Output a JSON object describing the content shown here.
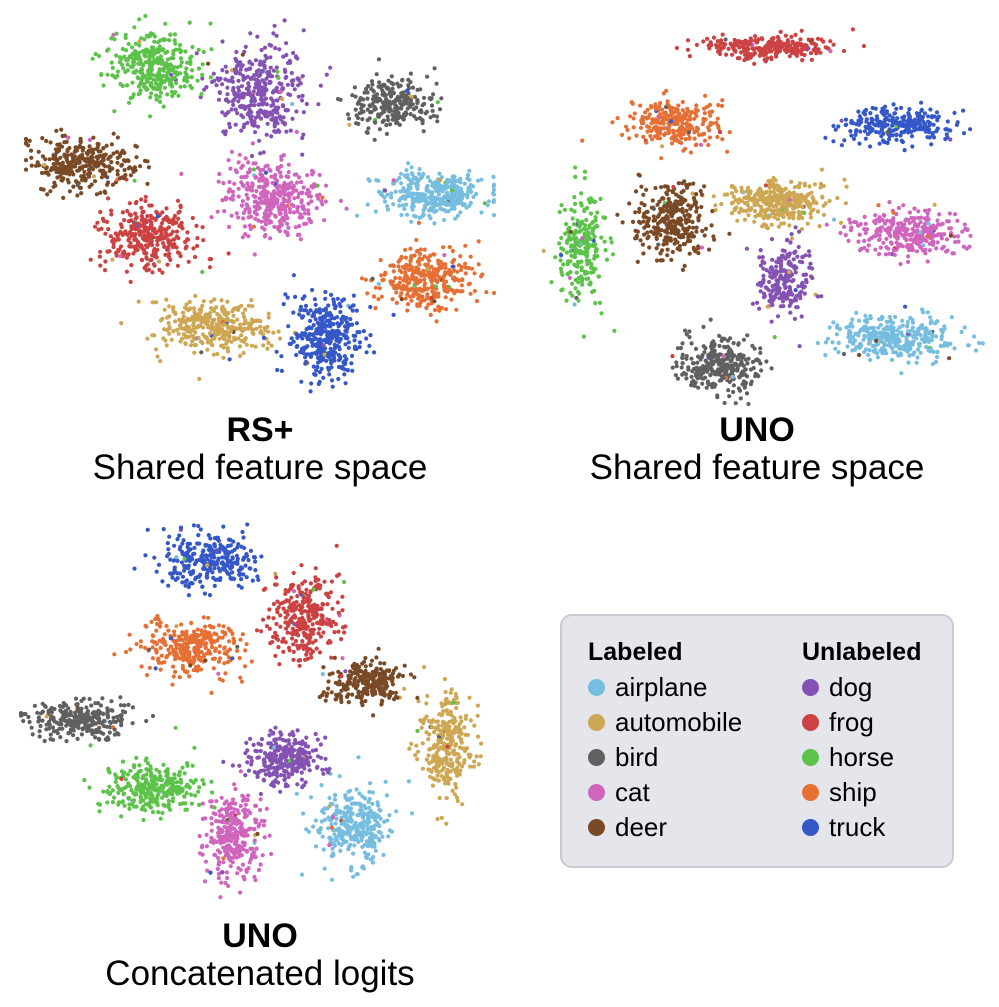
{
  "colors": {
    "airplane": "#76bde0",
    "automobile": "#cda753",
    "bird": "#606060",
    "cat": "#d065bd",
    "deer": "#7a4a26",
    "dog": "#8452b3",
    "frog": "#cc4242",
    "horse": "#5cc24a",
    "ship": "#e57035",
    "truck": "#3558c8"
  },
  "captions": {
    "rs": {
      "method": "RS+",
      "space": "Shared feature space"
    },
    "uno_shared": {
      "method": "UNO",
      "space": "Shared feature space"
    },
    "uno_logits": {
      "method": "UNO",
      "space": "Concatenated logits"
    }
  },
  "legend": {
    "labeled_title": "Labeled",
    "unlabeled_title": "Unlabeled",
    "labeled": [
      {
        "label": "airplane",
        "color": "#76bde0"
      },
      {
        "label": "automobile",
        "color": "#cda753"
      },
      {
        "label": "bird",
        "color": "#606060"
      },
      {
        "label": "cat",
        "color": "#d065bd"
      },
      {
        "label": "deer",
        "color": "#7a4a26"
      }
    ],
    "unlabeled": [
      {
        "label": "dog",
        "color": "#8452b3"
      },
      {
        "label": "frog",
        "color": "#cc4242"
      },
      {
        "label": "horse",
        "color": "#5cc24a"
      },
      {
        "label": "ship",
        "color": "#e57035"
      },
      {
        "label": "truck",
        "color": "#3558c8"
      }
    ]
  },
  "chart_data": [
    {
      "type": "scatter",
      "title": "RS+",
      "subtitle": "Shared feature space",
      "series": [
        {
          "name": "airplane",
          "center": [
            0.87,
            0.46
          ],
          "spread": [
            0.11,
            0.055
          ],
          "points": 360
        },
        {
          "name": "automobile",
          "center": [
            0.4,
            0.8
          ],
          "spread": [
            0.12,
            0.065
          ],
          "points": 340
        },
        {
          "name": "bird",
          "center": [
            0.78,
            0.23
          ],
          "spread": [
            0.09,
            0.07
          ],
          "points": 260
        },
        {
          "name": "cat",
          "center": [
            0.53,
            0.47
          ],
          "spread": [
            0.1,
            0.1
          ],
          "points": 380
        },
        {
          "name": "deer",
          "center": [
            0.12,
            0.38
          ],
          "spread": [
            0.12,
            0.07
          ],
          "points": 320
        },
        {
          "name": "dog",
          "center": [
            0.5,
            0.2
          ],
          "spread": [
            0.1,
            0.12
          ],
          "points": 380
        },
        {
          "name": "frog",
          "center": [
            0.26,
            0.57
          ],
          "spread": [
            0.1,
            0.085
          ],
          "points": 340
        },
        {
          "name": "horse",
          "center": [
            0.27,
            0.13
          ],
          "spread": [
            0.09,
            0.09
          ],
          "points": 330
        },
        {
          "name": "ship",
          "center": [
            0.85,
            0.68
          ],
          "spread": [
            0.1,
            0.08
          ],
          "points": 340
        },
        {
          "name": "truck",
          "center": [
            0.64,
            0.83
          ],
          "spread": [
            0.08,
            0.11
          ],
          "points": 360
        }
      ]
    },
    {
      "type": "scatter",
      "title": "UNO",
      "subtitle": "Shared feature space",
      "series": [
        {
          "name": "airplane",
          "center": [
            0.8,
            0.83
          ],
          "spread": [
            0.13,
            0.055
          ],
          "points": 340
        },
        {
          "name": "automobile",
          "center": [
            0.55,
            0.48
          ],
          "spread": [
            0.11,
            0.055
          ],
          "points": 340
        },
        {
          "name": "bird",
          "center": [
            0.42,
            0.9
          ],
          "spread": [
            0.09,
            0.07
          ],
          "points": 300
        },
        {
          "name": "cat",
          "center": [
            0.83,
            0.56
          ],
          "spread": [
            0.12,
            0.055
          ],
          "points": 300
        },
        {
          "name": "deer",
          "center": [
            0.32,
            0.53
          ],
          "spread": [
            0.08,
            0.1
          ],
          "points": 300
        },
        {
          "name": "dog",
          "center": [
            0.56,
            0.68
          ],
          "spread": [
            0.06,
            0.1
          ],
          "points": 220
        },
        {
          "name": "frog",
          "center": [
            0.53,
            0.08
          ],
          "spread": [
            0.14,
            0.03
          ],
          "points": 260
        },
        {
          "name": "horse",
          "center": [
            0.13,
            0.6
          ],
          "spread": [
            0.05,
            0.13
          ],
          "points": 240
        },
        {
          "name": "ship",
          "center": [
            0.33,
            0.28
          ],
          "spread": [
            0.1,
            0.06
          ],
          "points": 260
        },
        {
          "name": "truck",
          "center": [
            0.8,
            0.28
          ],
          "spread": [
            0.12,
            0.05
          ],
          "points": 260
        }
      ]
    },
    {
      "type": "scatter",
      "title": "UNO",
      "subtitle": "Concatenated logits",
      "series": [
        {
          "name": "airplane",
          "center": [
            0.7,
            0.8
          ],
          "spread": [
            0.08,
            0.1
          ],
          "points": 320
        },
        {
          "name": "automobile",
          "center": [
            0.9,
            0.58
          ],
          "spread": [
            0.06,
            0.13
          ],
          "points": 300
        },
        {
          "name": "bird",
          "center": [
            0.13,
            0.52
          ],
          "spread": [
            0.11,
            0.05
          ],
          "points": 280
        },
        {
          "name": "cat",
          "center": [
            0.45,
            0.83
          ],
          "spread": [
            0.06,
            0.12
          ],
          "points": 300
        },
        {
          "name": "deer",
          "center": [
            0.73,
            0.42
          ],
          "spread": [
            0.08,
            0.06
          ],
          "points": 260
        },
        {
          "name": "dog",
          "center": [
            0.56,
            0.62
          ],
          "spread": [
            0.08,
            0.07
          ],
          "points": 280
        },
        {
          "name": "frog",
          "center": [
            0.6,
            0.25
          ],
          "spread": [
            0.07,
            0.12
          ],
          "points": 300
        },
        {
          "name": "horse",
          "center": [
            0.28,
            0.7
          ],
          "spread": [
            0.1,
            0.07
          ],
          "points": 300
        },
        {
          "name": "ship",
          "center": [
            0.36,
            0.33
          ],
          "spread": [
            0.1,
            0.07
          ],
          "points": 300
        },
        {
          "name": "truck",
          "center": [
            0.4,
            0.1
          ],
          "spread": [
            0.1,
            0.07
          ],
          "points": 280
        }
      ]
    }
  ]
}
